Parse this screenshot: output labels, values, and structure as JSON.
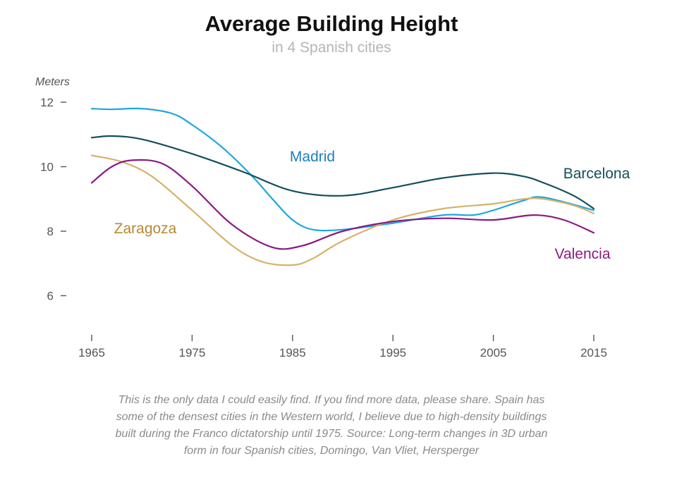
{
  "chart_data": {
    "type": "line",
    "title": "Average Building Height",
    "subtitle": "in 4 Spanish cities",
    "ylabel": "Meters",
    "xlabel": "",
    "xlim": [
      1961,
      2017
    ],
    "ylim": [
      4.7,
      12.8
    ],
    "x_ticks": [
      1965,
      1975,
      1985,
      1995,
      2005,
      2015
    ],
    "y_ticks": [
      6,
      8,
      10,
      12
    ],
    "grid": false,
    "legend": "inline-labels",
    "series": [
      {
        "name": "Madrid",
        "color": "#1fa7e0",
        "label_color": "#1d7fba",
        "x": [
          1965,
          1967,
          1970,
          1973,
          1975,
          1978,
          1981,
          1983,
          1985,
          1987,
          1990,
          1995,
          2000,
          2003,
          2005,
          2008,
          2010,
          2015
        ],
        "y": [
          11.8,
          11.78,
          11.8,
          11.65,
          11.3,
          10.6,
          9.7,
          9.0,
          8.35,
          8.05,
          8.05,
          8.25,
          8.5,
          8.5,
          8.65,
          8.95,
          9.05,
          8.65
        ]
      },
      {
        "name": "Barcelona",
        "color": "#134f5c",
        "label_color": "#134f5c",
        "x": [
          1965,
          1967,
          1970,
          1975,
          1980,
          1985,
          1990,
          1995,
          2000,
          2005,
          2008,
          2010,
          2013,
          2015
        ],
        "y": [
          10.9,
          10.95,
          10.85,
          10.4,
          9.85,
          9.25,
          9.1,
          9.35,
          9.65,
          9.8,
          9.7,
          9.5,
          9.1,
          8.7
        ]
      },
      {
        "name": "Zaragoza",
        "color": "#d6b26a",
        "label_color": "#b58a33",
        "x": [
          1965,
          1968,
          1971,
          1975,
          1979,
          1982,
          1985,
          1987,
          1990,
          1995,
          2000,
          2005,
          2008,
          2010,
          2013,
          2015
        ],
        "y": [
          10.35,
          10.15,
          9.7,
          8.65,
          7.55,
          7.05,
          6.95,
          7.15,
          7.7,
          8.35,
          8.7,
          8.85,
          9.0,
          9.0,
          8.8,
          8.55
        ]
      },
      {
        "name": "Valencia",
        "color": "#8b1a82",
        "label_color": "#8b1a82",
        "x": [
          1965,
          1967,
          1969,
          1972,
          1975,
          1979,
          1983,
          1986,
          1990,
          1995,
          2000,
          2005,
          2009,
          2012,
          2015
        ],
        "y": [
          9.5,
          10.0,
          10.2,
          10.1,
          9.4,
          8.2,
          7.5,
          7.55,
          8.0,
          8.3,
          8.4,
          8.35,
          8.5,
          8.35,
          7.95
        ]
      }
    ],
    "note": "This is the only data I could easily find. If you find more data, please share. Spain has some of the densest cities in the Western world, I believe due to high-density buildings built during the Franco dictatorship until 1975. Source: Long-term changes in 3D urban form in four Spanish cities, Domingo, Van Vliet, Hersperger"
  }
}
